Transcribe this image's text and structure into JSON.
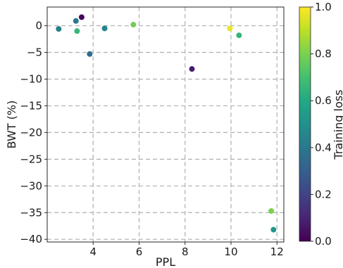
{
  "chart_data": {
    "type": "scatter",
    "title": "",
    "xlabel": "PPL",
    "ylabel": "BWT (%)",
    "colorbar_label": "Training loss",
    "colormap": "viridis",
    "xlim": [
      2.0,
      12.3
    ],
    "ylim": [
      -40.5,
      3.5
    ],
    "xticks": [
      4,
      6,
      8,
      10,
      12
    ],
    "xtick_labels": [
      "4",
      "6",
      "8",
      "10",
      "12"
    ],
    "yticks": [
      0,
      -5,
      -10,
      -15,
      -20,
      -25,
      -30,
      -35,
      -40
    ],
    "ytick_labels": [
      "0",
      "−5",
      "−10",
      "−15",
      "−20",
      "−25",
      "−30",
      "−35",
      "−40"
    ],
    "colorbar_ticks": [
      0.0,
      0.2,
      0.4,
      0.6,
      0.8,
      1.0
    ],
    "colorbar_tick_labels": [
      "0.0",
      "0.2",
      "0.4",
      "0.6",
      "0.8",
      "1.0"
    ],
    "grid": true,
    "grid_style": "dashed",
    "points": [
      {
        "x": 2.5,
        "y": -0.6,
        "c": 0.43
      },
      {
        "x": 3.25,
        "y": 0.9,
        "c": 0.41
      },
      {
        "x": 3.3,
        "y": -1.0,
        "c": 0.66
      },
      {
        "x": 3.5,
        "y": 1.6,
        "c": 0.02
      },
      {
        "x": 3.85,
        "y": -5.3,
        "c": 0.36
      },
      {
        "x": 4.5,
        "y": -0.5,
        "c": 0.45
      },
      {
        "x": 5.75,
        "y": 0.2,
        "c": 0.78
      },
      {
        "x": 8.3,
        "y": -8.1,
        "c": 0.08
      },
      {
        "x": 9.95,
        "y": -0.5,
        "c": 0.97
      },
      {
        "x": 10.35,
        "y": -1.8,
        "c": 0.66
      },
      {
        "x": 11.75,
        "y": -34.7,
        "c": 0.8
      },
      {
        "x": 11.85,
        "y": -38.2,
        "c": 0.52
      }
    ]
  }
}
